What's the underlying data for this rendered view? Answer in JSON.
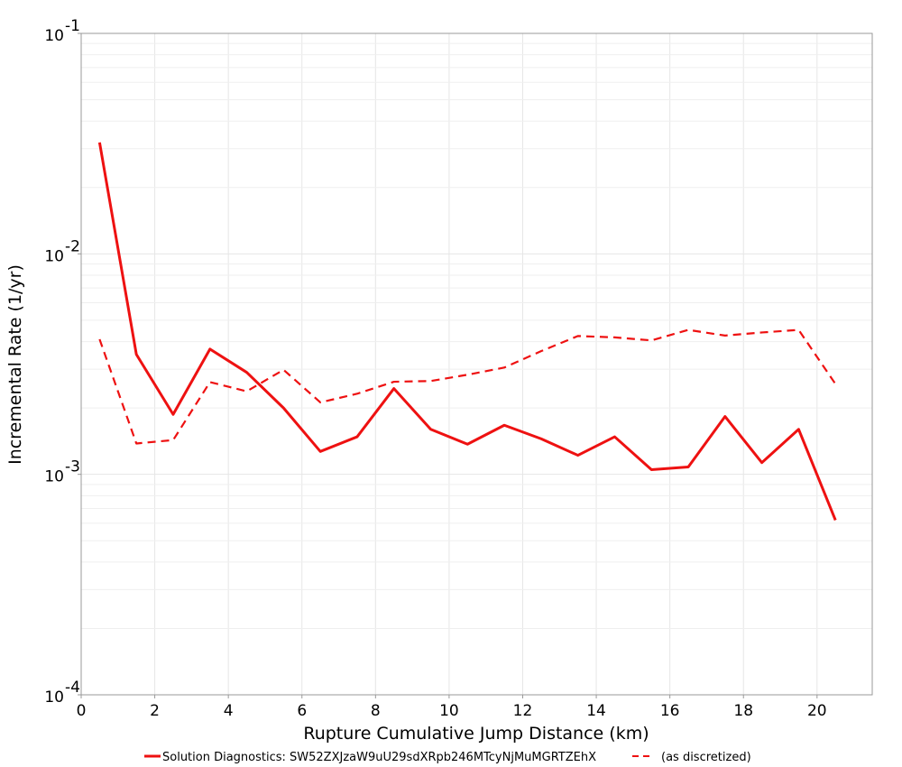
{
  "chart_data": {
    "type": "line",
    "xlabel": "Rupture Cumulative Jump Distance (km)",
    "ylabel": "Incremental Rate (1/yr)",
    "xlim": [
      0,
      21.5
    ],
    "ylim": [
      0.0001,
      0.1
    ],
    "yscale": "log",
    "grid": true,
    "legend_position": "bottom",
    "x_ticks": [
      "0",
      "2",
      "4",
      "6",
      "8",
      "10",
      "12",
      "14",
      "16",
      "18",
      "20"
    ],
    "y_ticks": [
      {
        "base": "10",
        "exp": "-1"
      },
      {
        "base": "10",
        "exp": "-2"
      },
      {
        "base": "10",
        "exp": "-3"
      },
      {
        "base": "10",
        "exp": "-4"
      }
    ],
    "x": [
      0.5,
      1.5,
      2.5,
      3.5,
      4.5,
      5.5,
      6.5,
      7.5,
      8.5,
      9.5,
      10.5,
      11.5,
      12.5,
      13.5,
      14.5,
      15.5,
      16.5,
      17.5,
      18.5,
      19.5,
      20.5
    ],
    "series": [
      {
        "name": "Solution Diagnostics: SW52ZXJzaW9uU29sdXRpb246MTcyNjMuMGRTZEhX",
        "color": "#ee1111",
        "style": "solid",
        "values": [
          0.032,
          0.0035,
          0.00187,
          0.0037,
          0.0029,
          0.002,
          0.00127,
          0.00148,
          0.00245,
          0.0016,
          0.00137,
          0.00167,
          0.00145,
          0.00122,
          0.00148,
          0.00105,
          0.00108,
          0.00183,
          0.00113,
          0.0016,
          0.00062
        ]
      },
      {
        "name": "(as discretized)",
        "color": "#ee1111",
        "style": "dashed",
        "values": [
          0.0041,
          0.00138,
          0.00143,
          0.00262,
          0.00238,
          0.00298,
          0.00212,
          0.00232,
          0.00263,
          0.00265,
          0.00283,
          0.00305,
          0.00362,
          0.00424,
          0.00418,
          0.00405,
          0.00452,
          0.00426,
          0.0044,
          0.00452,
          0.00257
        ]
      }
    ]
  }
}
